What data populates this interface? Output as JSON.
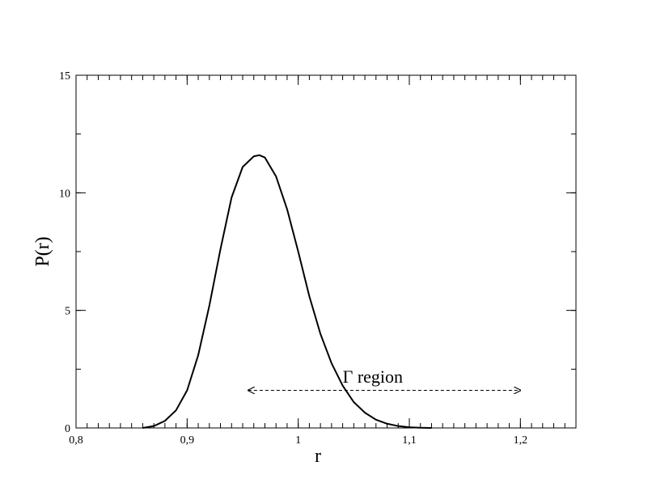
{
  "chart_data": {
    "type": "line",
    "xlabel": "r",
    "ylabel": "P(r)",
    "xlim": [
      0.8,
      1.25
    ],
    "ylim": [
      0,
      15
    ],
    "x_major_ticks": [
      0.8,
      0.9,
      1.0,
      1.1,
      1.2
    ],
    "x_tick_labels": [
      "0,8",
      "0,9",
      "1",
      "1,1",
      "1,2"
    ],
    "y_major_ticks": [
      0,
      5,
      10,
      15
    ],
    "y_tick_labels": [
      "0",
      "5",
      "10",
      "15"
    ],
    "x_minor_step": 0.01,
    "y_minor_step": 2.5,
    "grid": false,
    "series": [
      {
        "color": "#000000",
        "x": [
          0.86,
          0.87,
          0.88,
          0.89,
          0.9,
          0.91,
          0.92,
          0.93,
          0.94,
          0.95,
          0.96,
          0.965,
          0.97,
          0.98,
          0.99,
          1.0,
          1.01,
          1.02,
          1.03,
          1.04,
          1.05,
          1.06,
          1.07,
          1.08,
          1.09,
          1.1,
          1.11,
          1.12
        ],
        "y": [
          0.0,
          0.08,
          0.3,
          0.75,
          1.6,
          3.1,
          5.2,
          7.6,
          9.8,
          11.1,
          11.55,
          11.6,
          11.5,
          10.7,
          9.3,
          7.5,
          5.6,
          4.0,
          2.75,
          1.8,
          1.1,
          0.65,
          0.35,
          0.18,
          0.08,
          0.03,
          0.01,
          0.0
        ]
      }
    ],
    "annotations": [
      {
        "text": "Γ region",
        "arrow": "double-headed",
        "line_style": "dashed",
        "x_start": 0.955,
        "x_end": 1.2,
        "y": 1.6,
        "text_x": 1.04,
        "text_y": 2.0
      }
    ]
  }
}
